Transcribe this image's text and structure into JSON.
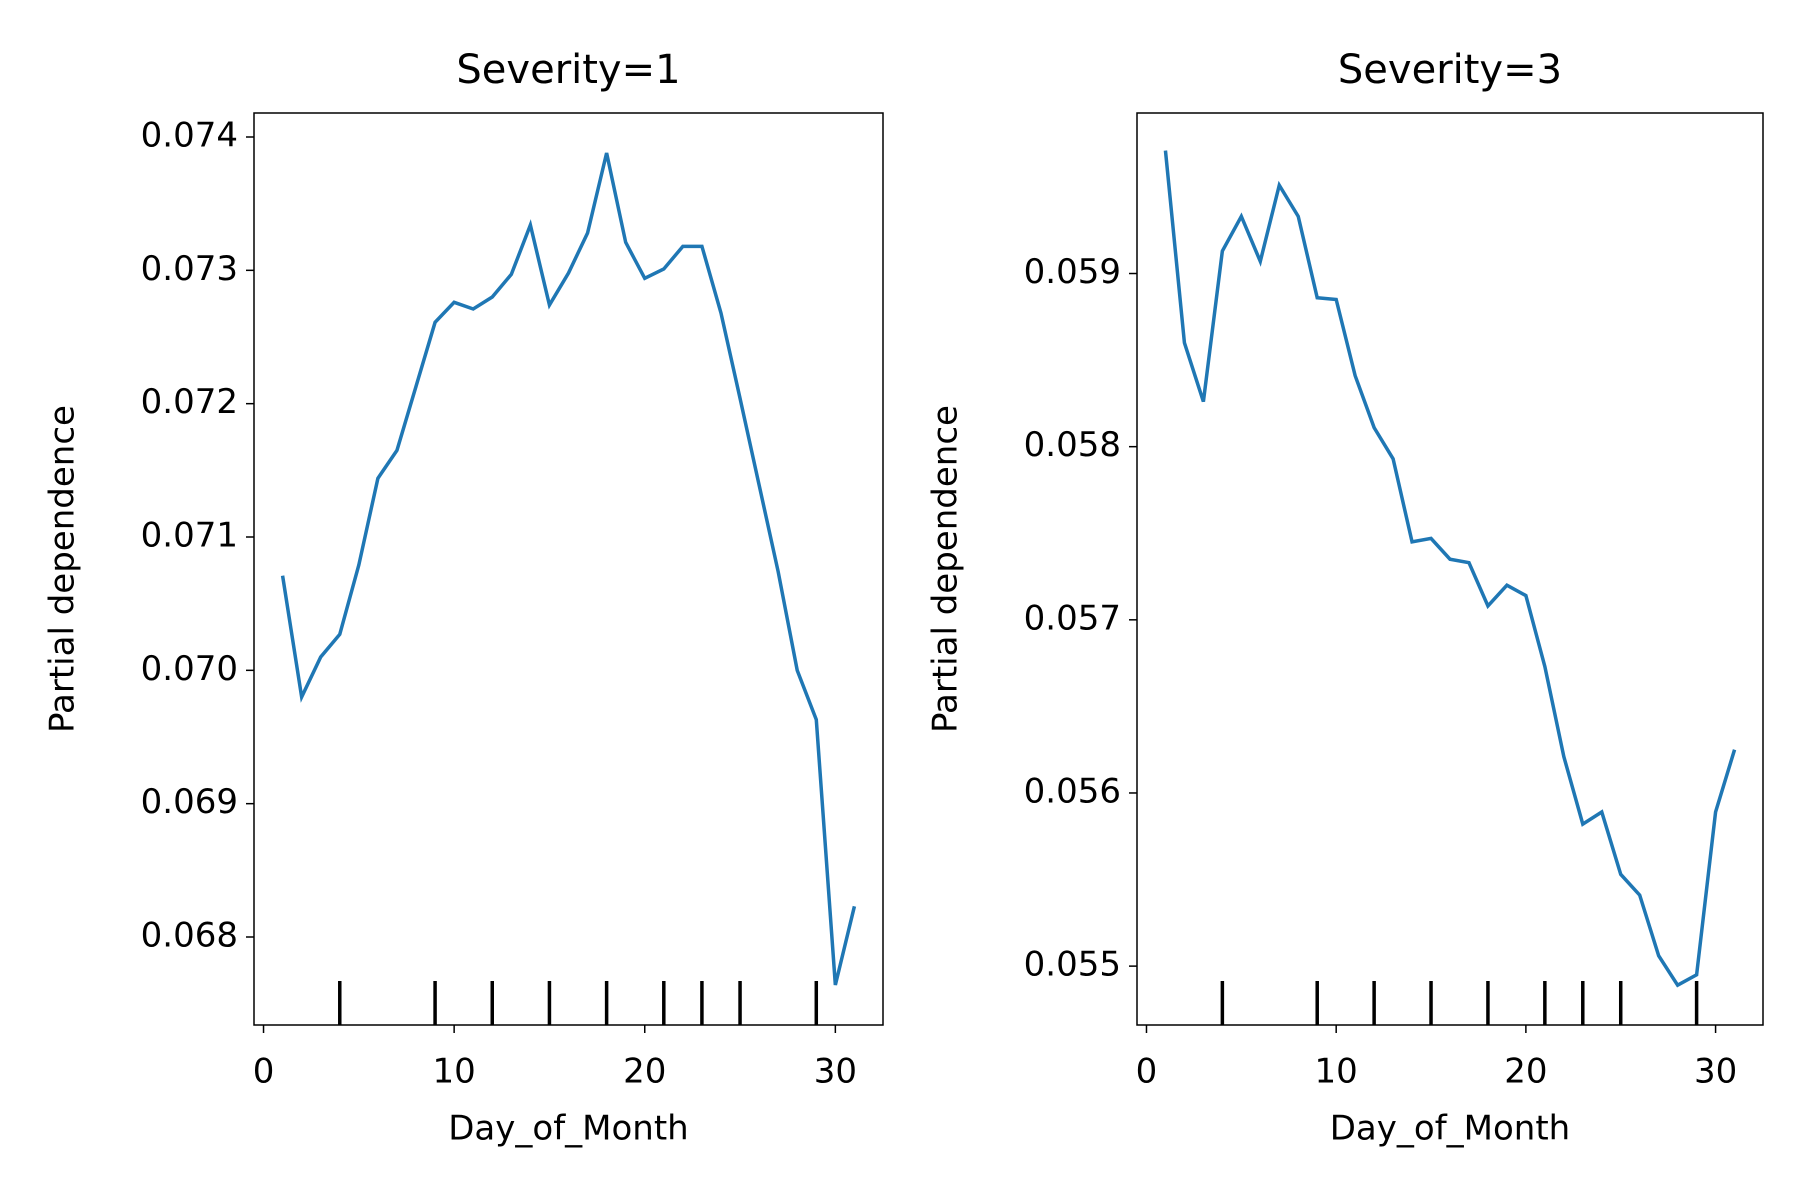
{
  "chart_data": [
    {
      "type": "line",
      "title": "Severity=1",
      "x_label": "Day_of_Month",
      "y_label": "Partial dependence",
      "x": [
        1,
        2,
        3,
        4,
        5,
        6,
        7,
        8,
        9,
        10,
        11,
        12,
        13,
        14,
        15,
        16,
        17,
        18,
        19,
        20,
        21,
        22,
        23,
        24,
        25,
        26,
        27,
        28,
        29,
        30,
        31
      ],
      "series": [
        {
          "name": "Severity=1",
          "color": "#1f77b4",
          "values": [
            0.07071,
            0.0698,
            0.0701,
            0.07027,
            0.07079,
            0.07144,
            0.07165,
            0.07213,
            0.07261,
            0.07276,
            0.07271,
            0.0728,
            0.07297,
            0.07334,
            0.07274,
            0.07298,
            0.07328,
            0.07388,
            0.07321,
            0.07294,
            0.07301,
            0.07318,
            0.07318,
            0.07268,
            0.07204,
            0.07139,
            0.07074,
            0.07,
            0.06963,
            0.06764,
            0.06823
          ]
        }
      ],
      "deciles": [
        4,
        9,
        12,
        15,
        18,
        21,
        23,
        25,
        29
      ],
      "xlim": [
        -0.5,
        32.5
      ],
      "xticks": [
        0,
        10,
        20,
        30
      ],
      "ylim": [
        0.06734,
        0.07418
      ],
      "yticks": [
        0.068,
        0.069,
        {
          "value": 0.07,
          "label": "0.070"
        },
        0.071,
        0.072,
        0.073,
        0.074
      ]
    },
    {
      "type": "line",
      "title": "Severity=3",
      "x_label": "Day_of_Month",
      "y_label": "Partial dependence",
      "x": [
        1,
        2,
        3,
        4,
        5,
        6,
        7,
        8,
        9,
        10,
        11,
        12,
        13,
        14,
        15,
        16,
        17,
        18,
        19,
        20,
        21,
        22,
        23,
        24,
        25,
        26,
        27,
        28,
        29,
        30,
        31
      ],
      "series": [
        {
          "name": "Severity=3",
          "color": "#1f77b4",
          "values": [
            0.05971,
            0.0586,
            0.05826,
            0.05913,
            0.05933,
            0.05907,
            0.05951,
            0.05933,
            0.05886,
            0.05885,
            0.05841,
            0.05811,
            0.05793,
            0.05745,
            0.05747,
            0.05735,
            0.05733,
            0.05708,
            0.0572,
            0.05714,
            0.05673,
            0.05621,
            0.05582,
            0.05589,
            0.05553,
            0.05541,
            0.05506,
            0.05489,
            0.05495,
            0.05589,
            0.05625
          ]
        }
      ],
      "deciles": [
        4,
        9,
        12,
        15,
        18,
        21,
        23,
        25,
        29
      ],
      "xlim": [
        -0.5,
        32.5
      ],
      "xticks": [
        0,
        10,
        20,
        30
      ],
      "ylim": [
        0.05466,
        0.059927
      ],
      "yticks": [
        0.055,
        0.056,
        0.057,
        0.058,
        0.059
      ]
    }
  ]
}
